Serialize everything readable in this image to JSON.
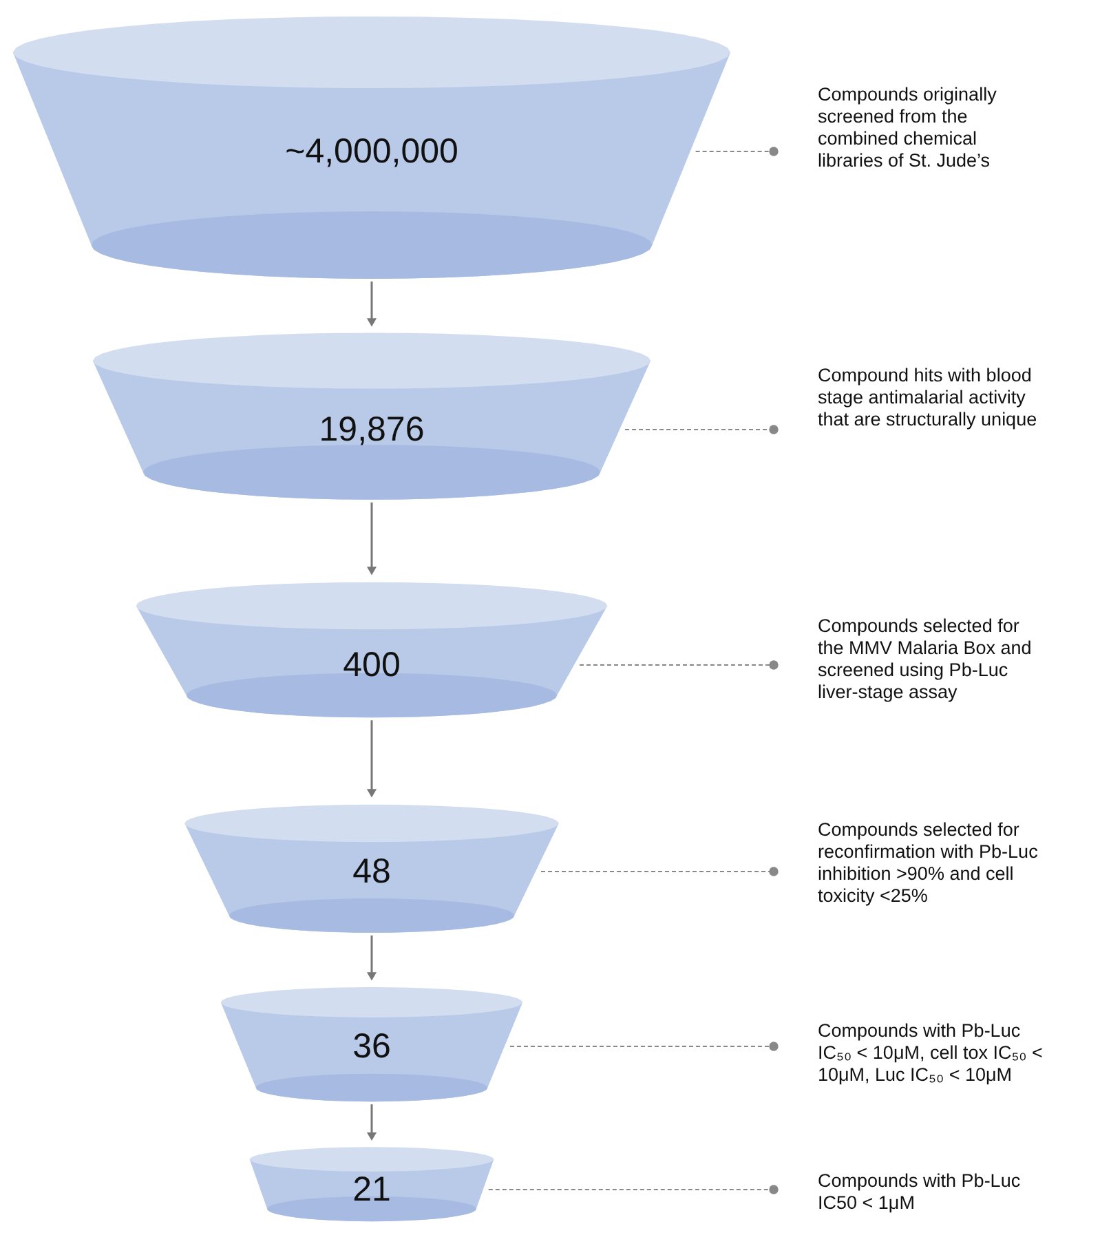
{
  "chart_data": {
    "type": "other",
    "values": [
      4000000,
      19876,
      400,
      48,
      36,
      21
    ],
    "value_labels": [
      "~4,000,000",
      "19,876",
      "400",
      "48",
      "36",
      "21"
    ],
    "color": "#b9c9e8",
    "annotations": [
      "Compounds originally\nscreened from the\ncombined chemical\nlibraries of St. Jude’s",
      "Compound hits with blood\nstage antimalarial activity\nthat are structurally unique",
      "Compounds selected for\nthe MMV Malaria Box and\nscreened using Pb-Luc\nliver-stage assay",
      "Compounds selected for\nreconfirmation with Pb-Luc\ninhibition  >90% and cell\ntoxicity <25%",
      "Compounds with Pb-Luc\nIC₅₀ < 10μM, cell tox IC₅₀ <\n10μM, Luc IC₅₀ < 10μM",
      "Compounds with Pb-Luc\nIC50 < 1μM"
    ]
  }
}
